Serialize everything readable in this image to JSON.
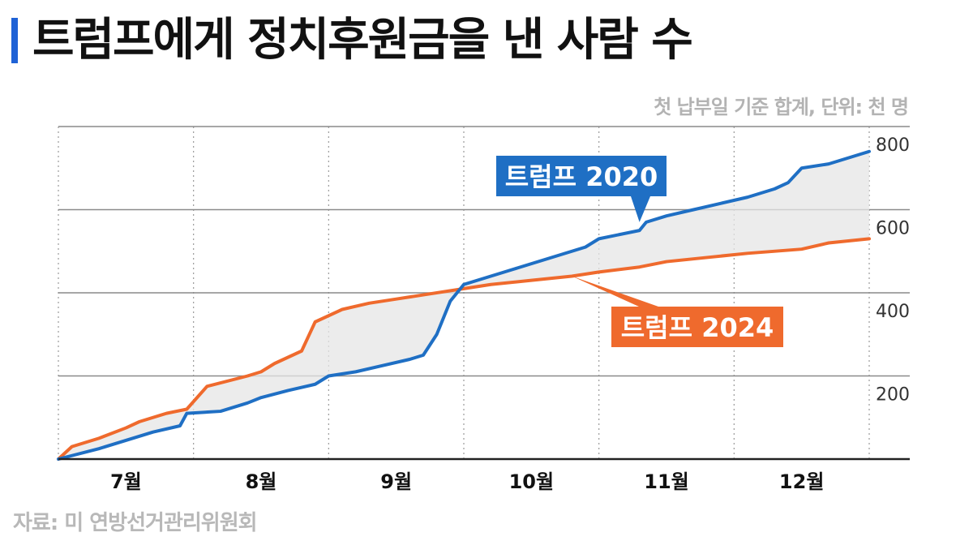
{
  "header": {
    "title": "트럼프에게 정치후원금을 낸 사람 수",
    "subtitle": "첫 납부일 기준 합계, 단위: 천 명"
  },
  "footer": {
    "source": "자료: 미 연방선거관리위원회"
  },
  "colors": {
    "accent": "#1f62d6",
    "series_2020": "#1f6fc4",
    "series_2024": "#ef6a2d",
    "fill_between": "#e6e6e6"
  },
  "chart_data": {
    "type": "line",
    "title": "트럼프에게 정치후원금을 낸 사람 수",
    "subtitle": "첫 납부일 기준 합계, 단위: 천 명",
    "x_unit": "month (7 = July … 12 = December; fractional = position within month)",
    "xlim": [
      6.5,
      12.5
    ],
    "ylim": [
      0,
      800
    ],
    "yticks": [
      200,
      400,
      600,
      800
    ],
    "ytick_labels": [
      "200",
      "400",
      "600",
      "800"
    ],
    "xticks": [
      7,
      8,
      9,
      10,
      11,
      12
    ],
    "xtick_labels": [
      "7월",
      "8월",
      "9월",
      "10월",
      "11월",
      "12월"
    ],
    "grid": true,
    "legend": "inline labels",
    "series": [
      {
        "name": "트럼프 2020",
        "color": "#1f6fc4",
        "x": [
          6.5,
          6.8,
          7.0,
          7.2,
          7.4,
          7.45,
          7.7,
          7.9,
          8.0,
          8.2,
          8.4,
          8.5,
          8.7,
          8.9,
          9.1,
          9.2,
          9.3,
          9.4,
          9.5,
          9.7,
          9.9,
          10.0,
          10.2,
          10.4,
          10.5,
          10.8,
          10.85,
          11.0,
          11.2,
          11.4,
          11.6,
          11.8,
          11.9,
          12.0,
          12.2,
          12.3,
          12.4,
          12.5
        ],
        "y": [
          0,
          25,
          45,
          65,
          80,
          110,
          115,
          135,
          148,
          165,
          180,
          200,
          210,
          225,
          240,
          250,
          300,
          380,
          420,
          440,
          460,
          470,
          490,
          510,
          530,
          550,
          570,
          585,
          600,
          615,
          630,
          650,
          665,
          700,
          710,
          720,
          730,
          740
        ]
      },
      {
        "name": "트럼프 2024",
        "color": "#ef6a2d",
        "x": [
          6.5,
          6.6,
          6.8,
          7.0,
          7.1,
          7.3,
          7.45,
          7.6,
          7.9,
          8.0,
          8.1,
          8.3,
          8.4,
          8.6,
          8.8,
          9.0,
          9.2,
          9.5,
          9.7,
          10.0,
          10.3,
          10.5,
          10.8,
          11.0,
          11.3,
          11.6,
          12.0,
          12.2,
          12.5
        ],
        "y": [
          0,
          30,
          50,
          75,
          90,
          110,
          120,
          175,
          200,
          210,
          230,
          260,
          330,
          360,
          375,
          385,
          395,
          410,
          420,
          430,
          440,
          450,
          462,
          475,
          485,
          495,
          505,
          520,
          530
        ]
      }
    ],
    "annotations": [
      {
        "text": "트럼프 2020",
        "series": "트럼프 2020",
        "x": 10.8,
        "y": 570,
        "box_color": "#1f6fc4"
      },
      {
        "text": "트럼프 2024",
        "series": "트럼프 2024",
        "x": 10.3,
        "y": 440,
        "box_color": "#ef6a2d"
      }
    ]
  }
}
